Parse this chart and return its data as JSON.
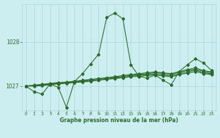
{
  "x": [
    0,
    1,
    2,
    3,
    4,
    5,
    6,
    7,
    8,
    9,
    10,
    11,
    12,
    13,
    14,
    15,
    16,
    17,
    18,
    19,
    20,
    21,
    22,
    23
  ],
  "main_line": [
    1027.0,
    1026.87,
    1026.82,
    1027.05,
    1026.97,
    1026.52,
    1027.1,
    1027.28,
    1027.5,
    1027.72,
    1028.55,
    1028.65,
    1028.52,
    1027.48,
    1027.22,
    1027.18,
    1027.25,
    1027.13,
    1027.03,
    1027.33,
    1027.48,
    1027.62,
    1027.52,
    1027.35
  ],
  "smooth1": [
    1027.0,
    1027.01,
    1027.02,
    1027.04,
    1027.06,
    1027.07,
    1027.09,
    1027.1,
    1027.12,
    1027.14,
    1027.16,
    1027.18,
    1027.2,
    1027.22,
    1027.24,
    1027.26,
    1027.27,
    1027.25,
    1027.23,
    1027.28,
    1027.32,
    1027.36,
    1027.3,
    1027.28
  ],
  "smooth2": [
    1027.0,
    1027.01,
    1027.03,
    1027.05,
    1027.07,
    1027.08,
    1027.1,
    1027.12,
    1027.14,
    1027.16,
    1027.18,
    1027.2,
    1027.22,
    1027.24,
    1027.26,
    1027.28,
    1027.3,
    1027.28,
    1027.26,
    1027.31,
    1027.35,
    1027.38,
    1027.33,
    1027.3
  ],
  "smooth3": [
    1027.0,
    1027.0,
    1027.01,
    1027.03,
    1027.05,
    1027.06,
    1027.08,
    1027.09,
    1027.11,
    1027.13,
    1027.15,
    1027.17,
    1027.19,
    1027.21,
    1027.22,
    1027.24,
    1027.25,
    1027.23,
    1027.21,
    1027.26,
    1027.29,
    1027.33,
    1027.28,
    1027.26
  ],
  "smooth4": [
    1027.0,
    1027.02,
    1027.04,
    1027.06,
    1027.08,
    1027.09,
    1027.11,
    1027.13,
    1027.15,
    1027.17,
    1027.19,
    1027.21,
    1027.24,
    1027.26,
    1027.28,
    1027.3,
    1027.32,
    1027.3,
    1027.28,
    1027.33,
    1027.37,
    1027.41,
    1027.35,
    1027.32
  ],
  "ylim": [
    1026.45,
    1028.85
  ],
  "yticks": [
    1027,
    1028
  ],
  "xlim": [
    -0.5,
    23.5
  ],
  "xticks": [
    0,
    1,
    2,
    3,
    4,
    5,
    6,
    7,
    8,
    9,
    10,
    11,
    12,
    13,
    14,
    15,
    16,
    17,
    18,
    19,
    20,
    21,
    22,
    23
  ],
  "line_color": "#2d6a2d",
  "bg_color": "#cceef0",
  "grid_color": "#aad4d8",
  "xlabel": "Graphe pression niveau de la mer (hPa)"
}
